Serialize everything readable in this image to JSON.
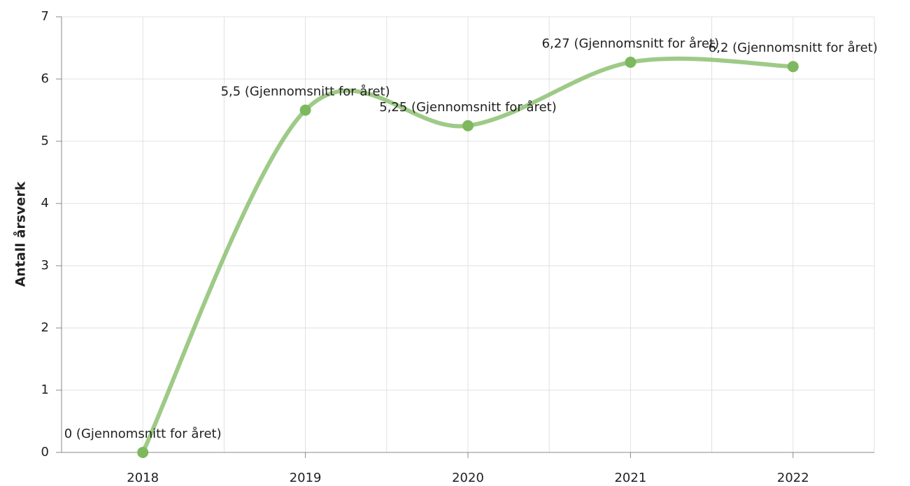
{
  "chart_data": {
    "type": "line",
    "y_label": "Antall årsverk",
    "categories": [
      "2018",
      "2019",
      "2020",
      "2021",
      "2022"
    ],
    "series": [
      {
        "color": "#7db85f",
        "values": [
          0,
          5.5,
          5.25,
          6.27,
          6.2
        ],
        "value_labels": [
          "0 (Gjennomsnitt for året)",
          "5,5 (Gjennomsnitt for året)",
          "5,25 (Gjennomsnitt for året)",
          "6,27 (Gjennomsnitt for året)",
          "6,2 (Gjennomsnitt for året)"
        ]
      }
    ],
    "ylim": [
      0,
      7
    ],
    "yticks": [
      0,
      1,
      2,
      3,
      4,
      5,
      6,
      7
    ],
    "grid": true,
    "smooth": true
  }
}
